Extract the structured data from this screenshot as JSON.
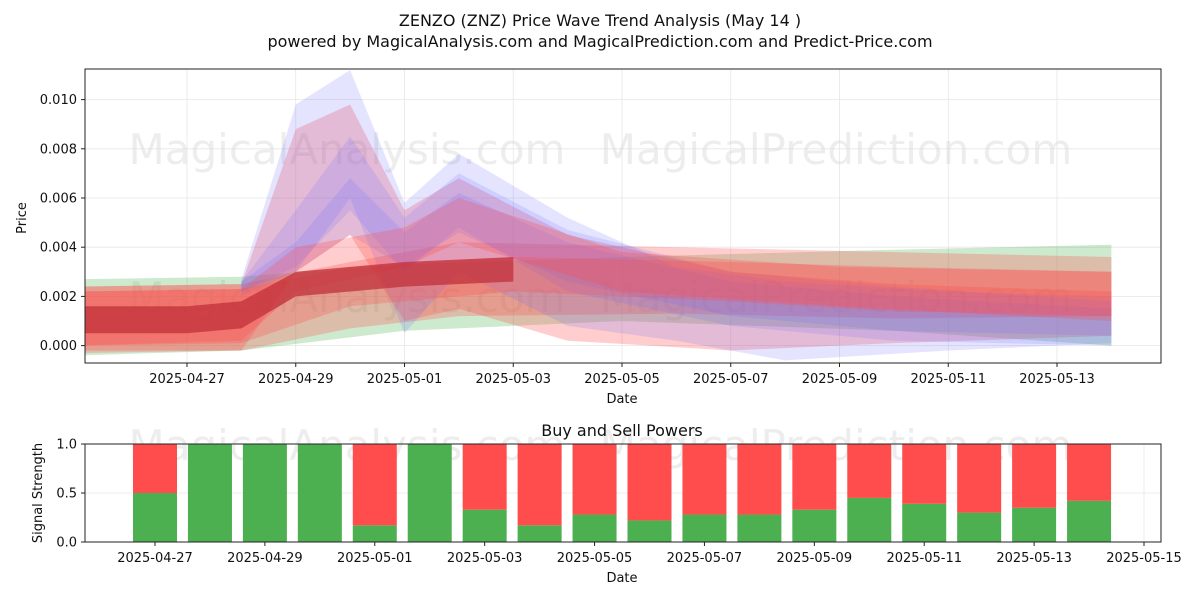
{
  "title": "ZENZO (ZNZ) Price Wave Trend Analysis (May 14 )",
  "subtitle": "powered by MagicalAnalysis.com and MagicalPrediction.com and Predict-Price.com",
  "watermarks": [
    "MagicalAnalysis.com",
    "MagicalPrediction.com"
  ],
  "colors": {
    "green": "#4caf50",
    "red": "#ff4c4c",
    "blue": "#6a6aff",
    "darkred": "#c0303a",
    "grid": "#e6e6e6"
  },
  "chart_data": [
    {
      "type": "area",
      "xlabel": "Date",
      "ylabel": "Price",
      "x_ticks": [
        "2025-04-27",
        "2025-04-29",
        "2025-05-01",
        "2025-05-03",
        "2025-05-05",
        "2025-05-07",
        "2025-05-09",
        "2025-05-11",
        "2025-05-13"
      ],
      "y_ticks": [
        "0.000",
        "0.002",
        "0.004",
        "0.006",
        "0.008",
        "0.010"
      ],
      "xlim": [
        "2025-04-24",
        "2025-05-15"
      ],
      "ylim": [
        -0.0007,
        0.0112
      ],
      "grid": true,
      "bands": [
        {
          "color": "green",
          "x": [
            "2025-04-25",
            "2025-04-28",
            "2025-05-01",
            "2025-05-05",
            "2025-05-10",
            "2025-05-14"
          ],
          "upper": [
            0.0027,
            0.0028,
            0.0033,
            0.0036,
            0.0039,
            0.0041
          ],
          "lower": [
            -0.0004,
            -0.0002,
            0.0006,
            0.001,
            0.0006,
            0.0
          ]
        },
        {
          "color": "red",
          "x": [
            "2025-04-25",
            "2025-04-28",
            "2025-04-30",
            "2025-05-02",
            "2025-05-06",
            "2025-05-10",
            "2025-05-14"
          ],
          "upper": [
            0.0024,
            0.0025,
            0.0034,
            0.0042,
            0.004,
            0.0038,
            0.0036
          ],
          "lower": [
            -0.0003,
            -0.0002,
            0.0007,
            0.0012,
            0.0013,
            0.0011,
            0.0012
          ]
        },
        {
          "color": "red",
          "x": [
            "2025-04-25",
            "2025-04-28",
            "2025-04-29",
            "2025-04-30",
            "2025-05-01",
            "2025-05-02",
            "2025-05-04",
            "2025-05-07",
            "2025-05-10",
            "2025-05-14"
          ],
          "upper": [
            0.0024,
            0.0025,
            0.0088,
            0.0098,
            0.0055,
            0.0068,
            0.0045,
            0.003,
            0.0025,
            0.0022
          ],
          "lower": [
            -0.0002,
            -0.0002,
            0.003,
            0.0045,
            0.001,
            0.0015,
            0.0002,
            -0.0002,
            0.0001,
            0.0004
          ]
        },
        {
          "color": "blue",
          "x": [
            "2025-04-28",
            "2025-04-29",
            "2025-04-30",
            "2025-05-01",
            "2025-05-02",
            "2025-05-04",
            "2025-05-06",
            "2025-05-08",
            "2025-05-11",
            "2025-05-14"
          ],
          "upper": [
            0.0027,
            0.0098,
            0.0112,
            0.0058,
            0.0078,
            0.0052,
            0.0032,
            0.0026,
            0.0022,
            0.002
          ],
          "lower": [
            0.002,
            0.003,
            0.006,
            0.0005,
            0.003,
            0.0008,
            0.0002,
            -0.0006,
            -0.0002,
            0.0001
          ]
        },
        {
          "color": "blue",
          "x": [
            "2025-04-28",
            "2025-04-29",
            "2025-04-30",
            "2025-05-01",
            "2025-05-02",
            "2025-05-04",
            "2025-05-07",
            "2025-05-10",
            "2025-05-14"
          ],
          "upper": [
            0.0026,
            0.0055,
            0.0085,
            0.0052,
            0.007,
            0.0047,
            0.003,
            0.0024,
            0.0018
          ],
          "lower": [
            0.0022,
            0.0032,
            0.0055,
            0.003,
            0.0048,
            0.0022,
            0.0008,
            0.0002,
            0.0
          ]
        },
        {
          "color": "blue",
          "x": [
            "2025-04-28",
            "2025-04-29",
            "2025-04-30",
            "2025-05-01",
            "2025-05-02",
            "2025-05-04",
            "2025-05-07",
            "2025-05-10",
            "2025-05-14"
          ],
          "upper": [
            0.0026,
            0.0042,
            0.0068,
            0.0046,
            0.0062,
            0.0042,
            0.0026,
            0.002,
            0.0015
          ],
          "lower": [
            0.0022,
            0.003,
            0.0045,
            0.0032,
            0.0046,
            0.0026,
            0.0012,
            0.0006,
            0.0004
          ]
        },
        {
          "color": "red",
          "x": [
            "2025-04-25",
            "2025-04-28",
            "2025-04-29",
            "2025-05-01",
            "2025-05-02",
            "2025-05-05",
            "2025-05-09",
            "2025-05-14"
          ],
          "upper": [
            0.0022,
            0.0023,
            0.004,
            0.0048,
            0.006,
            0.0038,
            0.0032,
            0.003
          ],
          "lower": [
            0.0,
            0.0002,
            0.0022,
            0.0032,
            0.0042,
            0.0022,
            0.0016,
            0.001
          ]
        },
        {
          "color": "red",
          "x": [
            "2025-04-25",
            "2025-04-28",
            "2025-04-30",
            "2025-05-03",
            "2025-05-07",
            "2025-05-10",
            "2025-05-14"
          ],
          "upper": [
            0.0022,
            0.0023,
            0.0032,
            0.0036,
            0.0034,
            0.0032,
            0.003
          ],
          "lower": [
            0.0,
            0.0001,
            0.0016,
            0.0022,
            0.0018,
            0.0014,
            0.0012
          ]
        },
        {
          "color": "darkred",
          "x": [
            "2025-04-25",
            "2025-04-27",
            "2025-04-28",
            "2025-04-29",
            "2025-05-01",
            "2025-05-03"
          ],
          "upper": [
            0.0016,
            0.0016,
            0.0018,
            0.003,
            0.0034,
            0.0036
          ],
          "lower": [
            0.0005,
            0.0005,
            0.0007,
            0.002,
            0.0024,
            0.0026
          ]
        }
      ]
    },
    {
      "type": "bar",
      "title": "Buy and Sell Powers",
      "xlabel": "Date",
      "ylabel": "Signal Strength",
      "ylim": [
        0,
        1
      ],
      "y_ticks": [
        "0.0",
        "0.5",
        "1.0"
      ],
      "x_ticks": [
        "2025-04-27",
        "2025-04-29",
        "2025-05-01",
        "2025-05-03",
        "2025-05-05",
        "2025-05-07",
        "2025-05-09",
        "2025-05-11",
        "2025-05-13",
        "2025-05-15"
      ],
      "categories": [
        "2025-04-27",
        "2025-04-28",
        "2025-04-29",
        "2025-04-30",
        "2025-05-01",
        "2025-05-02",
        "2025-05-03",
        "2025-05-04",
        "2025-05-05",
        "2025-05-06",
        "2025-05-07",
        "2025-05-08",
        "2025-05-09",
        "2025-05-10",
        "2025-05-11",
        "2025-05-12",
        "2025-05-13",
        "2025-05-14"
      ],
      "series": [
        {
          "color": "green",
          "values": [
            0.5,
            1.0,
            1.0,
            1.0,
            0.17,
            1.0,
            0.33,
            0.17,
            0.28,
            0.22,
            0.28,
            0.28,
            0.33,
            0.45,
            0.39,
            0.3,
            0.35,
            0.42
          ]
        },
        {
          "color": "red",
          "values": [
            0.5,
            0.0,
            0.0,
            0.0,
            0.83,
            0.0,
            0.67,
            0.83,
            0.72,
            0.78,
            0.72,
            0.72,
            0.67,
            0.55,
            0.61,
            0.7,
            0.65,
            0.58
          ]
        }
      ]
    }
  ]
}
